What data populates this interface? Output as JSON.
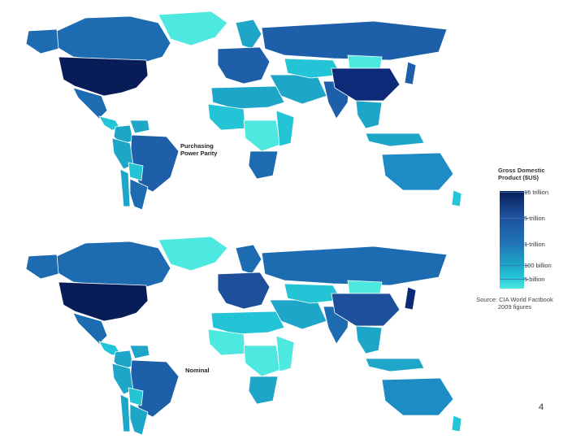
{
  "maps": [
    {
      "label": "Purchasing\nPower Parity"
    },
    {
      "label": "Nominal"
    }
  ],
  "legend": {
    "title": "Gross Domestic\nProduct ($US)",
    "ticks": [
      "15 trillion",
      "5 trillion",
      "1 trillion",
      "100 billion",
      "5 billion"
    ],
    "source": "Source: CIA World Factbook\n2009 figures"
  },
  "page_number": "4",
  "colors": {
    "scale": [
      "#081d58",
      "#1d4f9a",
      "#2171b5",
      "#1ea6c8",
      "#23c4d6",
      "#4de8e0"
    ],
    "no_data": "#8a9aa0"
  },
  "regions": {
    "ppp": {
      "greenland": "#4de8e0",
      "canada": "#1d6bb0",
      "usa": "#081d58",
      "mexico": "#1d6bb0",
      "central_america": "#23c4d6",
      "colombia": "#1ea6c8",
      "venezuela": "#1ea6c8",
      "brazil": "#1d5fa8",
      "peru": "#1ea6c8",
      "bolivia": "#23c4d6",
      "argentina": "#1d6bb0",
      "chile": "#1ea6c8",
      "europe_west": "#1d5fa8",
      "scandinavia": "#1ea6c8",
      "russia": "#1d5fa8",
      "north_africa": "#1ea6c8",
      "west_africa": "#23c4d6",
      "central_africa": "#4de8e0",
      "east_africa": "#23c4d6",
      "south_africa": "#1d6bb0",
      "middle_east": "#1ea6c8",
      "central_asia": "#23c4d6",
      "india": "#1d5fa8",
      "china": "#0d2a78",
      "mongolia": "#4de8e0",
      "se_asia": "#1ea6c8",
      "indonesia": "#1ea6c8",
      "japan": "#1d5fa8",
      "australia": "#1e8cc4",
      "nz": "#23c4d6"
    },
    "nominal": {
      "greenland": "#4de8e0",
      "canada": "#1d6bb0",
      "usa": "#081d58",
      "mexico": "#1d6bb0",
      "central_america": "#23c4d6",
      "colombia": "#1ea6c8",
      "venezuela": "#1ea6c8",
      "brazil": "#1d5fa8",
      "peru": "#1ea6c8",
      "bolivia": "#23c4d6",
      "argentina": "#1ea6c8",
      "chile": "#1ea6c8",
      "europe_west": "#1d4f9a",
      "scandinavia": "#1d6bb0",
      "russia": "#1d6bb0",
      "north_africa": "#23c4d6",
      "west_africa": "#4de8e0",
      "central_africa": "#4de8e0",
      "east_africa": "#4de8e0",
      "south_africa": "#1ea6c8",
      "middle_east": "#1ea6c8",
      "central_asia": "#23c4d6",
      "india": "#1d6bb0",
      "china": "#1d4f9a",
      "mongolia": "#4de8e0",
      "se_asia": "#1ea6c8",
      "indonesia": "#1ea6c8",
      "japan": "#0d2a78",
      "australia": "#1e8cc4",
      "nz": "#23c4d6"
    }
  }
}
